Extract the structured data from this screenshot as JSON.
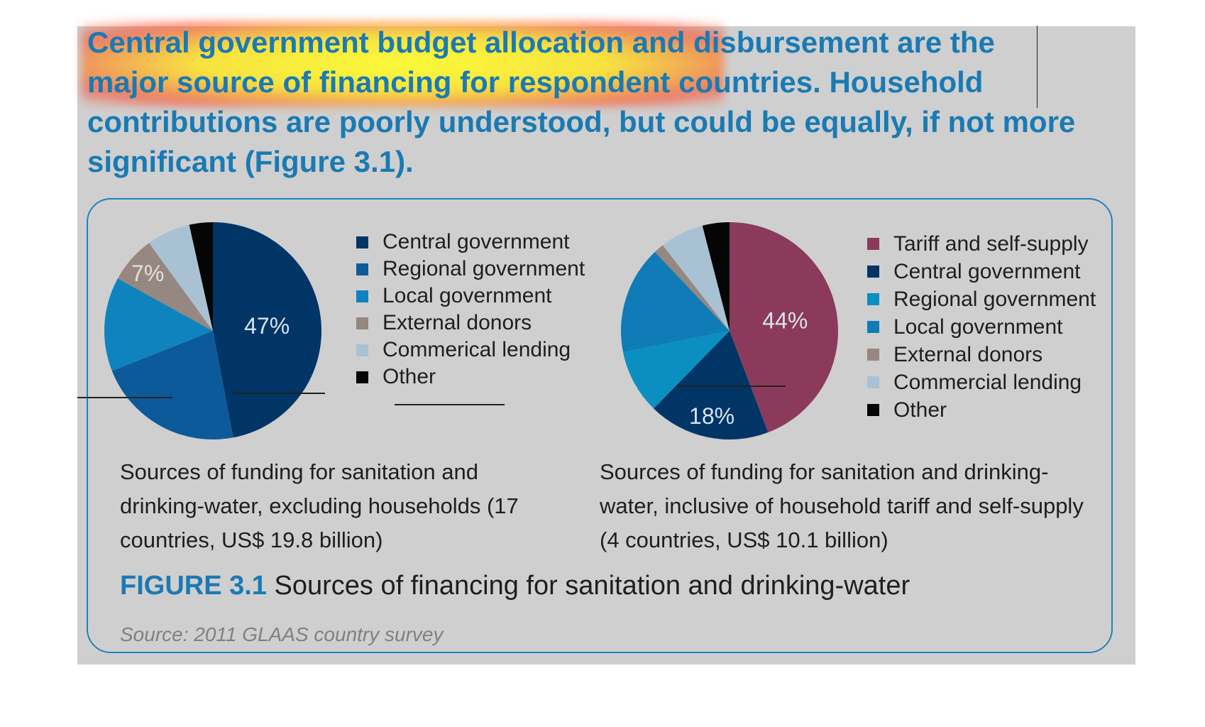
{
  "headline": "Central government budget allocation and disbursement are the major source of financing for respondent countries. Household contributions are poorly understood, but could be equally, if not more significant (Figure 3.1).",
  "figure": {
    "label": "FIGURE 3.1",
    "title": "Sources of financing for sanitation and drinking-water",
    "source": "Source: 2011 GLAAS country survey"
  },
  "colors": {
    "panel_bg": "#cfcfcf",
    "accent_blue": "#1a7ab3",
    "frame_border": "#1f82bd"
  },
  "chart_data": [
    {
      "type": "pie",
      "caption": "Sources of funding for sanitation and drinking-water, excluding households (17 countries, US$ 19.8 billion)",
      "slices": [
        {
          "name": "Central government",
          "value": 47,
          "label": "47%",
          "color": "#003566"
        },
        {
          "name": "Regional government",
          "value": 22,
          "label": "",
          "color": "#0d5a9a"
        },
        {
          "name": "Local government",
          "value": 14,
          "label": "",
          "color": "#0f83bd"
        },
        {
          "name": "External donors",
          "value": 7,
          "label": "7%",
          "color": "#968781"
        },
        {
          "name": "Commerical lending",
          "value": 6.5,
          "label": "",
          "color": "#a9c2d3"
        },
        {
          "name": "Other",
          "value": 3.5,
          "label": "",
          "color": "#050505"
        }
      ]
    },
    {
      "type": "pie",
      "caption": "Sources of funding for sanitation and drinking-water, inclusive of household tariff and self-supply (4 countries, US$ 10.1 billion)",
      "slices": [
        {
          "name": "Tariff and self-supply",
          "value": 44,
          "label": "44%",
          "color": "#8b3a5b"
        },
        {
          "name": "Central government",
          "value": 18,
          "label": "18%",
          "color": "#003566"
        },
        {
          "name": "Regional government",
          "value": 9.5,
          "label": "",
          "color": "#0a8fc0"
        },
        {
          "name": "Local government",
          "value": 16,
          "label": "",
          "color": "#0f7bb7"
        },
        {
          "name": "External donors",
          "value": 1.5,
          "label": "",
          "color": "#968781"
        },
        {
          "name": "Commercial lending",
          "value": 6.5,
          "label": "",
          "color": "#a9c2d3"
        },
        {
          "name": "Other",
          "value": 4,
          "label": "",
          "color": "#050505"
        }
      ]
    }
  ]
}
